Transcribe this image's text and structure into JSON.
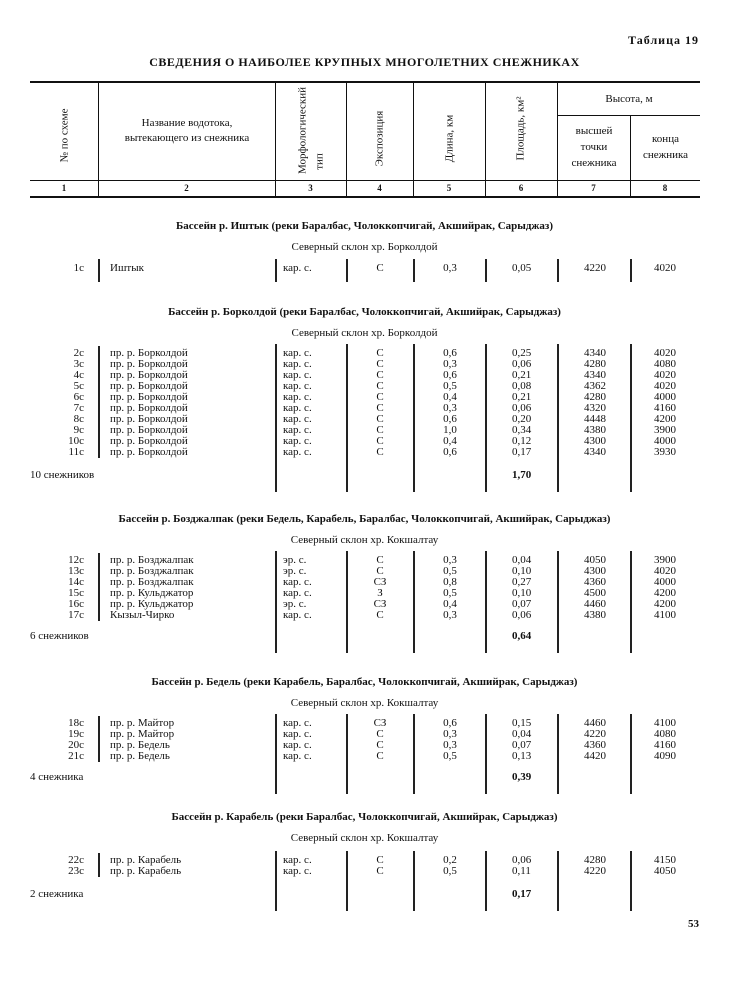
{
  "table_label": "Таблица 19",
  "title": "СВЕДЕНИЯ О НАИБОЛЕЕ КРУПНЫХ МНОГОЛЕТНИХ СНЕЖНИКАХ",
  "header": {
    "col1": "№ по схеме",
    "col2_line1": "Название водотока,",
    "col2_line2": "вытекающего из снежника",
    "col3_line1": "Морфологический",
    "col3_line2": "тип",
    "col4": "Экспозиция",
    "col5": "Длина, км",
    "col6": "Площадь, км²",
    "height_group": "Высота, м",
    "col7_line1": "высшей",
    "col7_line2": "точки",
    "col7_line3": "снежника",
    "col8_line1": "конца",
    "col8_line2": "снежника",
    "numbers": [
      "1",
      "2",
      "3",
      "4",
      "5",
      "6",
      "7",
      "8"
    ]
  },
  "sections": [
    {
      "basin": "Бассейн р. Иштык (реки Баралбас, Чолоккопчигай, Акшийрак, Сарыджаз)",
      "slope": "Северный склон хр. Борколдой",
      "rows": [
        [
          "1с",
          "Иштык",
          "кар. с.",
          "С",
          "0,3",
          "0,05",
          "4220",
          "4020"
        ]
      ]
    },
    {
      "basin": "Бассейн р. Борколдой (реки Баралбас, Чолоккопчигай, Акшийрак, Сарыджаз)",
      "slope": "Северный склон хр. Борколдой",
      "rows": [
        [
          "2с",
          "пр. р. Борколдой",
          "кар. с.",
          "С",
          "0,6",
          "0,25",
          "4340",
          "4020"
        ],
        [
          "3с",
          "пр. р. Борколдой",
          "кар. с.",
          "С",
          "0,3",
          "0,06",
          "4280",
          "4080"
        ],
        [
          "4с",
          "пр. р. Борколдой",
          "кар. с.",
          "С",
          "0,6",
          "0,21",
          "4340",
          "4020"
        ],
        [
          "5с",
          "пр. р. Борколдой",
          "кар. с.",
          "С",
          "0,5",
          "0,08",
          "4362",
          "4020"
        ],
        [
          "6с",
          "пр. р. Борколдой",
          "кар. с.",
          "С",
          "0,4",
          "0,21",
          "4280",
          "4000"
        ],
        [
          "7с",
          "пр. р. Борколдой",
          "кар. с.",
          "С",
          "0,3",
          "0,06",
          "4320",
          "4160"
        ],
        [
          "8с",
          "пр. р. Борколдой",
          "кар. с.",
          "С",
          "0,6",
          "0,20",
          "4448",
          "4200"
        ],
        [
          "9с",
          "пр. р. Борколдой",
          "кар. с.",
          "С",
          "1,0",
          "0,34",
          "4380",
          "3900"
        ],
        [
          "10с",
          "пр. р. Борколдой",
          "кар. с.",
          "С",
          "0,4",
          "0,12",
          "4300",
          "4000"
        ],
        [
          "11с",
          "пр. р. Борколдой",
          "кар. с.",
          "С",
          "0,6",
          "0,17",
          "4340",
          "3930"
        ]
      ],
      "total_label": "10 снежников",
      "total_area": "1,70"
    },
    {
      "basin": "Бассейн р. Бозджалпак (реки Бедель, Карабель, Баралбас, Чолоккопчигай, Акшийрак, Сарыджаз)",
      "slope": "Северный склон хр. Кокшалтау",
      "rows": [
        [
          "12с",
          "пр. р. Бозджалпак",
          "эр. с.",
          "С",
          "0,3",
          "0,04",
          "4050",
          "3900"
        ],
        [
          "13с",
          "пр. р. Бозджалпак",
          "эр. с.",
          "С",
          "0,5",
          "0,10",
          "4300",
          "4020"
        ],
        [
          "14с",
          "пр. р. Бозджалпак",
          "кар. с.",
          "СЗ",
          "0,8",
          "0,27",
          "4360",
          "4000"
        ],
        [
          "15с",
          "пр. р. Кульджатор",
          "кар. с.",
          "З",
          "0,5",
          "0,10",
          "4500",
          "4200"
        ],
        [
          "16с",
          "пр. р. Кульджатор",
          "эр. с.",
          "СЗ",
          "0,4",
          "0,07",
          "4460",
          "4200"
        ],
        [
          "17с",
          "Кызыл-Чирко",
          "кар. с.",
          "С",
          "0,3",
          "0,06",
          "4380",
          "4100"
        ]
      ],
      "total_label": "6 снежников",
      "total_area": "0,64"
    },
    {
      "basin": "Бассейн р. Бедель (реки Карабель, Баралбас, Чолоккопчигай, Акшийрак, Сарыджаз)",
      "slope": "Северный склон хр. Кокшалтау",
      "rows": [
        [
          "18с",
          "пр. р. Майтор",
          "кар. с.",
          "СЗ",
          "0,6",
          "0,15",
          "4460",
          "4100"
        ],
        [
          "19с",
          "пр. р. Майтор",
          "кар. с.",
          "С",
          "0,3",
          "0,04",
          "4220",
          "4080"
        ],
        [
          "20с",
          "пр. р. Бедель",
          "кар. с.",
          "С",
          "0,3",
          "0,07",
          "4360",
          "4160"
        ],
        [
          "21с",
          "пр. р. Бедель",
          "кар. с.",
          "С",
          "0,5",
          "0,13",
          "4420",
          "4090"
        ]
      ],
      "total_label": "4 снежника",
      "total_area": "0,39"
    },
    {
      "basin": "Бассейн р. Карабель (реки Баралбас, Чолоккопчигай, Акшийрак, Сарыджаз)",
      "slope": "Северный склон хр. Кокшалтау",
      "rows": [
        [
          "22с",
          "пр. р. Карабель",
          "кар. с.",
          "С",
          "0,2",
          "0,06",
          "4280",
          "4150"
        ],
        [
          "23с",
          "пр. р. Карабель",
          "кар. с.",
          "С",
          "0,5",
          "0,11",
          "4220",
          "4050"
        ]
      ],
      "total_label": "2 снежника",
      "total_area": "0,17"
    }
  ],
  "page_number": "53"
}
